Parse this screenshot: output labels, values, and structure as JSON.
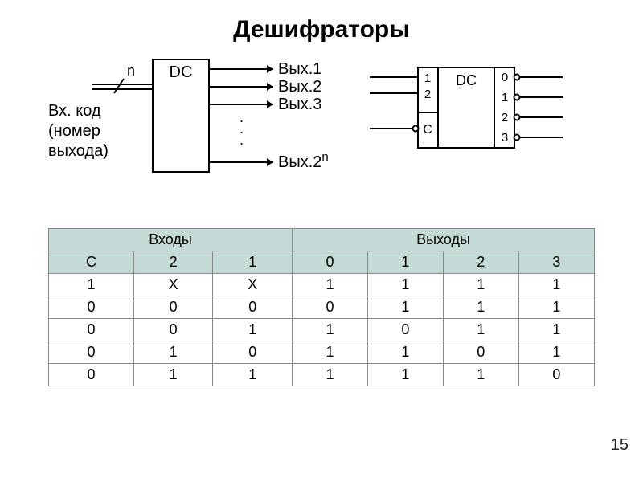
{
  "title": "Дешифраторы",
  "page_number": "15",
  "diagram1": {
    "block_label": "DC",
    "input_n": "n",
    "input_text1": "Вх. код",
    "input_text2": "(номер",
    "input_text3": "выхода)",
    "out1": "Вых.1",
    "out2": "Вых.2",
    "out3": "Вых.3",
    "out_last_prefix": "Вых.2",
    "out_last_sup": "n",
    "dots": ".",
    "stroke": "#000000",
    "fill": "#ffffff",
    "text_color": "#000000",
    "font_size": 18
  },
  "diagram2": {
    "block_label": "DC",
    "in1": "1",
    "in2": "2",
    "inC": "C",
    "out0": "0",
    "out1": "1",
    "out2": "2",
    "out3": "3",
    "stroke": "#000000",
    "fill": "#ffffff",
    "text_color": "#000000",
    "font_size": 16
  },
  "table": {
    "header_bg": "#c5dbd7",
    "border_color": "#888888",
    "font_size": 18,
    "group_headers": [
      "Входы",
      "Выходы"
    ],
    "group_spans": [
      3,
      4
    ],
    "columns": [
      "C",
      "2",
      "1",
      "0",
      "1",
      "2",
      "3"
    ],
    "rows": [
      [
        "1",
        "X",
        "X",
        "1",
        "1",
        "1",
        "1"
      ],
      [
        "0",
        "0",
        "0",
        "0",
        "1",
        "1",
        "1"
      ],
      [
        "0",
        "0",
        "1",
        "1",
        "0",
        "1",
        "1"
      ],
      [
        "0",
        "1",
        "0",
        "1",
        "1",
        "0",
        "1"
      ],
      [
        "0",
        "1",
        "1",
        "1",
        "1",
        "1",
        "0"
      ]
    ]
  }
}
